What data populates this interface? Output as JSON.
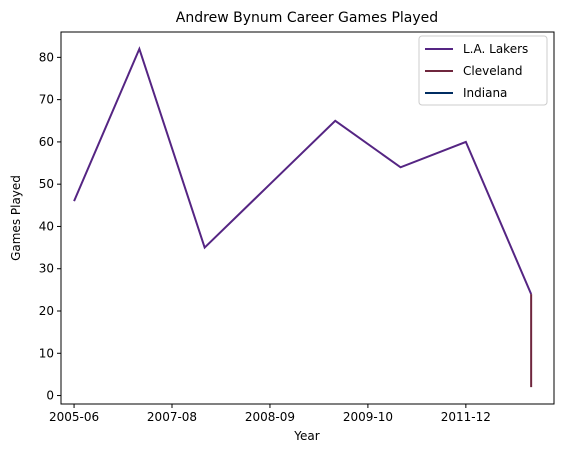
{
  "chart_data": {
    "type": "line",
    "title": "Andrew Bynum Career Games Played",
    "xlabel": "Year",
    "ylabel": "Games Played",
    "x": [
      0,
      1,
      2,
      3,
      4,
      5,
      6,
      7
    ],
    "xticks": [
      {
        "x": 0,
        "label": "2005-06"
      },
      {
        "x": 1.5,
        "label": "2007-08"
      },
      {
        "x": 3,
        "label": "2008-09"
      },
      {
        "x": 4.5,
        "label": "2009-10"
      },
      {
        "x": 6,
        "label": "2011-12"
      }
    ],
    "xlim": [
      -0.2,
      7.35
    ],
    "ylim": [
      -2,
      86
    ],
    "yticks": [
      0,
      10,
      20,
      30,
      40,
      50,
      60,
      70,
      80
    ],
    "grid": false,
    "legend_position": "top-right",
    "series": [
      {
        "name": "L.A. Lakers",
        "color": "#552583",
        "points": [
          [
            0,
            46
          ],
          [
            1,
            82
          ],
          [
            2,
            35
          ],
          [
            3,
            50
          ],
          [
            4,
            65
          ],
          [
            5,
            54
          ],
          [
            6,
            60
          ],
          [
            7,
            24
          ]
        ]
      },
      {
        "name": "Cleveland",
        "color": "#6F263D",
        "points": [
          [
            7,
            24
          ],
          [
            7,
            2
          ]
        ]
      },
      {
        "name": "Indiana",
        "color": "#002D62",
        "points": []
      }
    ]
  }
}
